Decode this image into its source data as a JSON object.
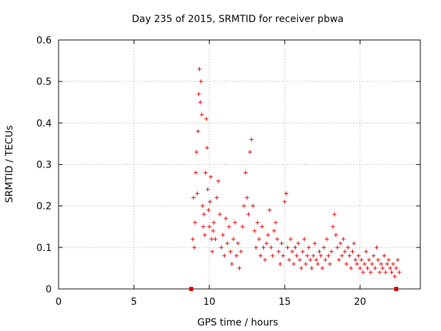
{
  "chart_data": {
    "type": "scatter",
    "title": "Day 235 of 2015, SRMTID for receiver pbwa",
    "xlabel": "GPS time / hours",
    "ylabel": "SRMTID / TECUs",
    "xlim": [
      0,
      24
    ],
    "ylim": [
      0,
      0.6
    ],
    "xticks": [
      "0",
      "5",
      "10",
      "15",
      "20"
    ],
    "yticks": [
      "0",
      "0.1",
      "0.2",
      "0.3",
      "0.4",
      "0.5",
      "0.6"
    ],
    "grid": true,
    "marker": "+",
    "color": "#e00000",
    "series": [
      {
        "name": "SRMTID",
        "x": [
          8.9,
          8.95,
          9.0,
          9.05,
          9.1,
          9.15,
          9.2,
          9.25,
          9.3,
          9.35,
          9.4,
          9.45,
          9.5,
          9.55,
          9.6,
          9.65,
          9.7,
          9.75,
          9.8,
          9.85,
          9.9,
          9.95,
          10.0,
          10.05,
          10.1,
          10.15,
          10.2,
          10.25,
          10.3,
          10.4,
          10.5,
          10.6,
          10.7,
          10.8,
          10.9,
          11.0,
          11.1,
          11.2,
          11.3,
          11.4,
          11.5,
          11.6,
          11.7,
          11.8,
          11.9,
          12.0,
          12.1,
          12.2,
          12.3,
          12.4,
          12.5,
          12.6,
          12.7,
          12.8,
          12.9,
          13.0,
          13.1,
          13.2,
          13.3,
          13.4,
          13.5,
          13.6,
          13.7,
          13.8,
          13.9,
          14.0,
          14.1,
          14.2,
          14.3,
          14.4,
          14.5,
          14.6,
          14.7,
          14.8,
          14.9,
          15.0,
          15.1,
          15.2,
          15.3,
          15.4,
          15.5,
          15.6,
          15.7,
          15.8,
          15.9,
          16.0,
          16.1,
          16.2,
          16.3,
          16.4,
          16.5,
          16.6,
          16.7,
          16.8,
          16.9,
          17.0,
          17.1,
          17.2,
          17.3,
          17.4,
          17.5,
          17.6,
          17.7,
          17.8,
          17.9,
          18.0,
          18.1,
          18.2,
          18.3,
          18.4,
          18.5,
          18.6,
          18.7,
          18.8,
          18.9,
          19.0,
          19.1,
          19.2,
          19.3,
          19.4,
          19.5,
          19.6,
          19.7,
          19.8,
          19.9,
          20.0,
          20.1,
          20.2,
          20.3,
          20.4,
          20.5,
          20.6,
          20.7,
          20.8,
          20.9,
          21.0,
          21.1,
          21.2,
          21.3,
          21.4,
          21.5,
          21.6,
          21.7,
          21.8,
          21.9,
          22.0,
          22.1,
          22.2,
          22.3,
          22.4,
          22.5,
          22.6
        ],
        "y": [
          0.12,
          0.22,
          0.1,
          0.16,
          0.28,
          0.33,
          0.23,
          0.38,
          0.47,
          0.53,
          0.45,
          0.5,
          0.42,
          0.2,
          0.15,
          0.18,
          0.13,
          0.28,
          0.41,
          0.34,
          0.24,
          0.19,
          0.15,
          0.21,
          0.27,
          0.12,
          0.09,
          0.14,
          0.16,
          0.12,
          0.22,
          0.26,
          0.18,
          0.1,
          0.13,
          0.08,
          0.17,
          0.11,
          0.15,
          0.09,
          0.06,
          0.12,
          0.16,
          0.08,
          0.11,
          0.05,
          0.09,
          0.15,
          0.2,
          0.28,
          0.22,
          0.18,
          0.33,
          0.36,
          0.2,
          0.14,
          0.1,
          0.16,
          0.12,
          0.08,
          0.15,
          0.1,
          0.07,
          0.11,
          0.13,
          0.19,
          0.1,
          0.08,
          0.14,
          0.16,
          0.12,
          0.09,
          0.06,
          0.11,
          0.08,
          0.21,
          0.23,
          0.1,
          0.07,
          0.12,
          0.09,
          0.06,
          0.1,
          0.08,
          0.11,
          0.07,
          0.05,
          0.09,
          0.12,
          0.06,
          0.08,
          0.1,
          0.07,
          0.05,
          0.08,
          0.11,
          0.07,
          0.06,
          0.09,
          0.08,
          0.05,
          0.1,
          0.07,
          0.12,
          0.08,
          0.06,
          0.09,
          0.15,
          0.18,
          0.13,
          0.1,
          0.07,
          0.11,
          0.08,
          0.12,
          0.09,
          0.06,
          0.1,
          0.08,
          0.05,
          0.09,
          0.11,
          0.07,
          0.06,
          0.08,
          0.05,
          0.07,
          0.04,
          0.06,
          0.09,
          0.05,
          0.07,
          0.04,
          0.06,
          0.08,
          0.05,
          0.1,
          0.07,
          0.04,
          0.06,
          0.05,
          0.08,
          0.04,
          0.06,
          0.07,
          0.05,
          0.04,
          0.06,
          0.03,
          0.05,
          0.07,
          0.04
        ]
      }
    ],
    "no_data_markers": [
      8.8,
      22.4
    ]
  }
}
